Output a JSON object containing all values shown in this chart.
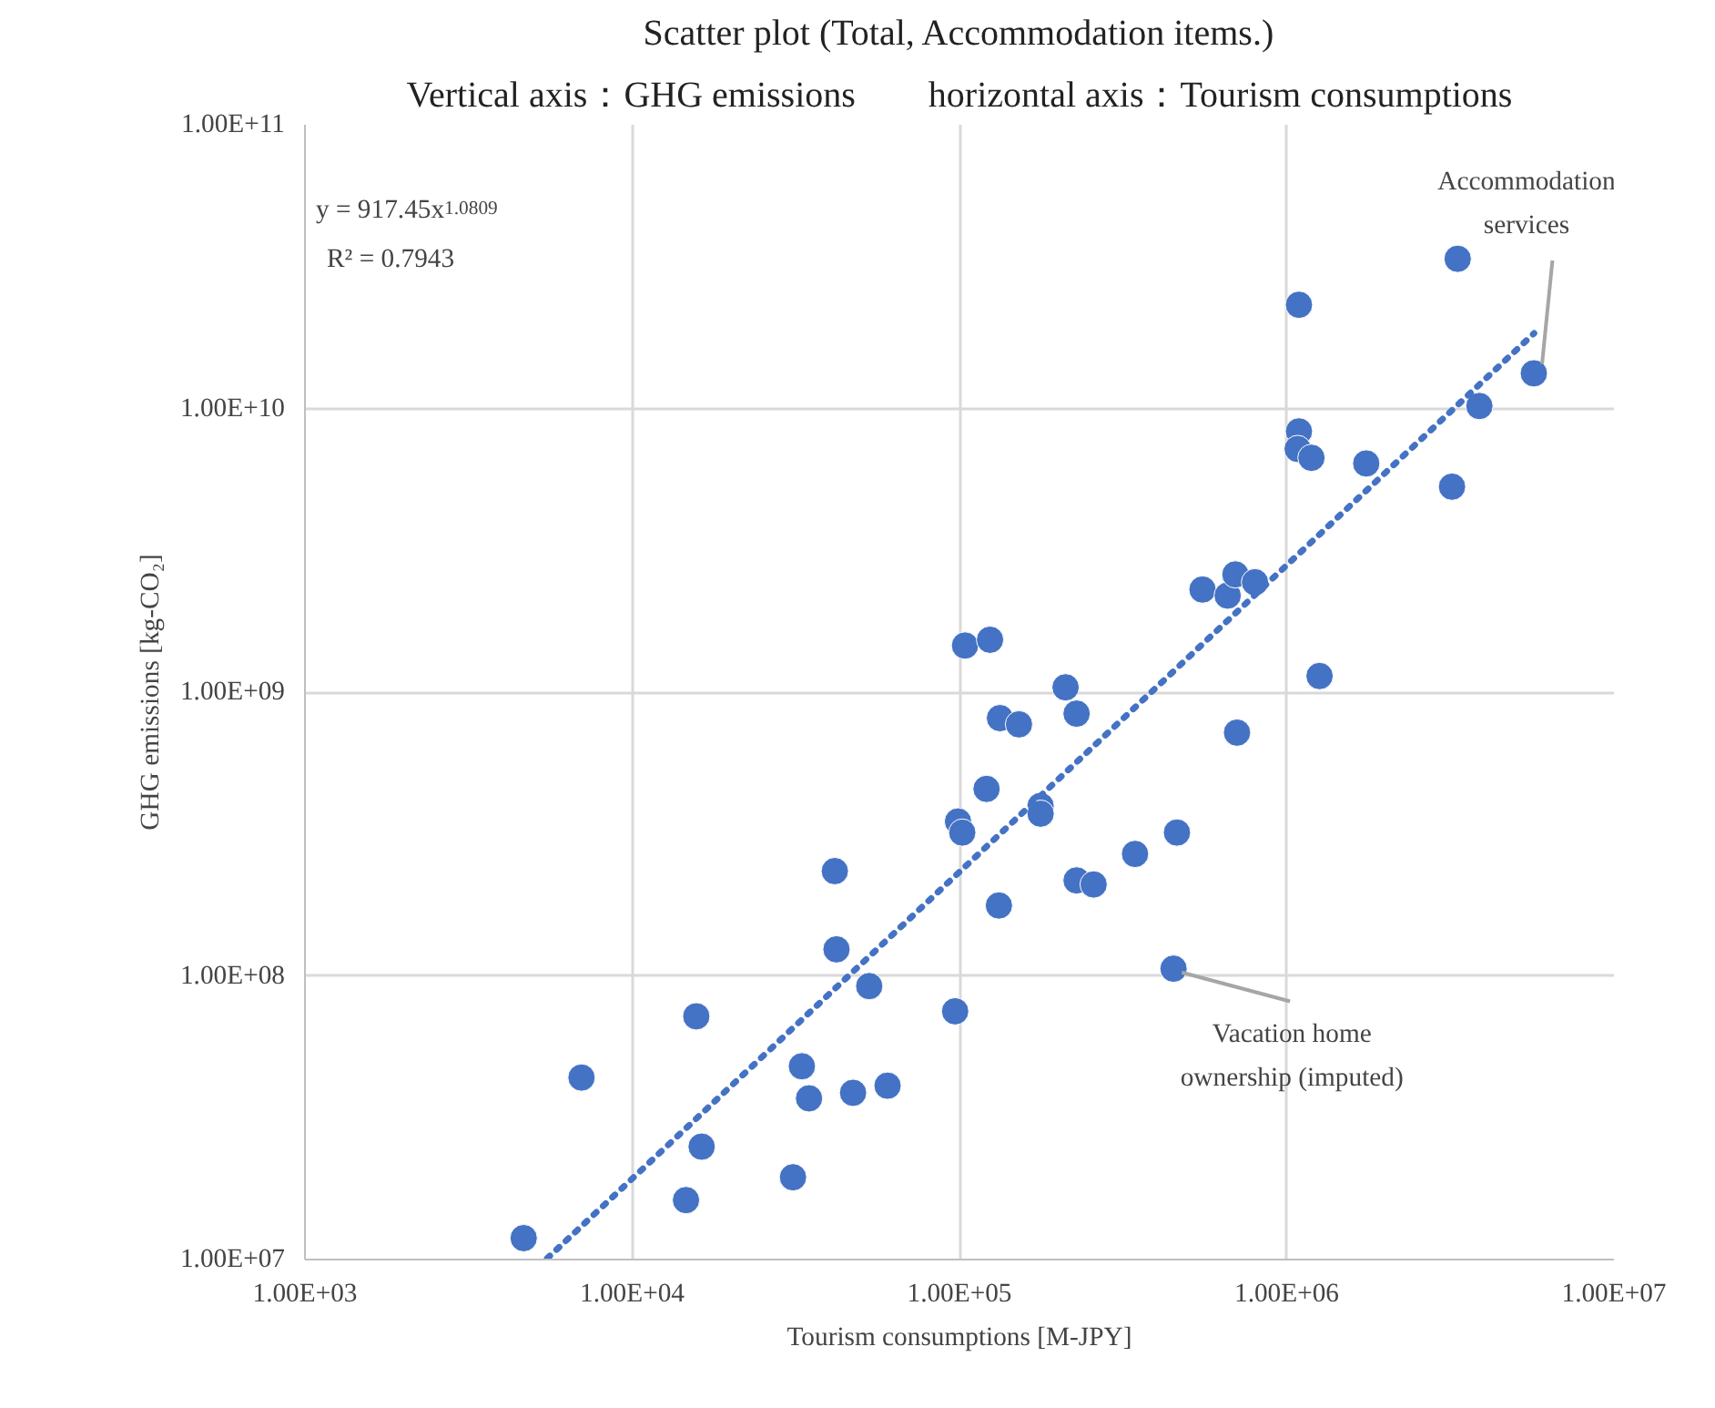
{
  "chart_data": {
    "type": "scatter",
    "title": "Scatter plot (Total, Accommodation items.)",
    "subtitle": "Vertical axis：GHG emissions　　horizontal axis：Tourism consumptions",
    "xlabel": "Tourism consumptions [M-JPY]",
    "ylabel": "GHG emissions [kg-CO₂]",
    "log": "xy",
    "grid": true,
    "marker": "circle",
    "xlim": [
      1000,
      10000000
    ],
    "ylim": [
      10000000,
      100000000000
    ],
    "xticks": [
      {
        "value": 1000,
        "label": "1.00E+03"
      },
      {
        "value": 10000,
        "label": "1.00E+04"
      },
      {
        "value": 100000,
        "label": "1.00E+05"
      },
      {
        "value": 1000000,
        "label": "1.00E+06"
      },
      {
        "value": 10000000,
        "label": "1.00E+07"
      }
    ],
    "yticks": [
      {
        "value": 10000000,
        "label": "1.00E+07"
      },
      {
        "value": 100000000,
        "label": "1.00E+08"
      },
      {
        "value": 1000000000,
        "label": "1.00E+09"
      },
      {
        "value": 10000000000,
        "label": "1.00E+10"
      },
      {
        "value": 100000000000,
        "label": "1.00E+11"
      }
    ],
    "series": [
      {
        "type": "scatter",
        "color": "#4472c4",
        "x": [
          4660,
          7000,
          14600,
          15700,
          16300,
          31000,
          33000,
          34700,
          41600,
          42100,
          47300,
          53000,
          60300,
          97000,
          99000,
          102000,
          104000,
          124000,
          121000,
          133000,
          152000,
          132000,
          177000,
          177000,
          211000,
          228000,
          228000,
          257000,
          344000,
          462000,
          451000,
          553000,
          660000,
          697000,
          800000,
          705000,
          1090000,
          1090000,
          1080000,
          1190000,
          1260000,
          1750000,
          3200000,
          3330000,
          3880000,
          5690000
        ],
        "values": [
          11900000,
          43800000,
          16200000,
          72000000,
          25000000,
          19500000,
          48000000,
          37000000,
          234000000,
          124000000,
          38700000,
          92000000,
          41000000,
          75000000,
          350000000,
          320000000,
          1460000000,
          1530000000,
          456000000,
          810000000,
          770000000,
          177000000,
          397000000,
          373000000,
          1040000000,
          840000000,
          217000000,
          210000000,
          269000000,
          320000000,
          106000000,
          2300000000,
          2190000000,
          2600000000,
          2440000000,
          720000000,
          23200000000,
          8300000000,
          7200000000,
          6700000000,
          1140000000,
          6400000000,
          5300000000,
          33700000000,
          10200000000,
          13300000000
        ]
      },
      {
        "type": "line",
        "color": "#4472c4",
        "line_style": "dotted",
        "marker": "none",
        "x": [
          5500,
          5700000
        ],
        "values": [
          10100000,
          18400000000
        ]
      }
    ],
    "annotations": [
      "y = 917.45x$^{1.0809}$",
      "R² = 0.7943",
      {
        "text": "Accommodation services",
        "x": 5690000,
        "y": 13300000000
      },
      {
        "text": "Vacation home ownership (imputed)",
        "x": 451000,
        "y": 106000000
      }
    ]
  }
}
